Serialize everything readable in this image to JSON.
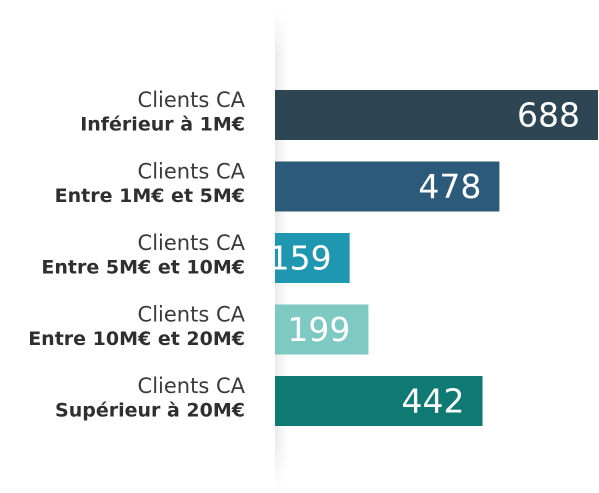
{
  "chart_data": {
    "type": "barh",
    "categories": [
      [
        "Clients CA",
        "Inférieur à 1M€"
      ],
      [
        "Clients CA",
        "Entre 1M€ et 5M€"
      ],
      [
        "Clients CA",
        "Entre 5M€ et 10M€"
      ],
      [
        "Clients CA",
        "Entre 10M€ et 20M€"
      ],
      [
        "Clients CA",
        "Supérieur à 20M€"
      ]
    ],
    "values": [
      688,
      478,
      159,
      199,
      442
    ],
    "colors": [
      "#2e4553",
      "#2b5a7a",
      "#1f97b0",
      "#7ecac3",
      "#0f7a73"
    ]
  }
}
